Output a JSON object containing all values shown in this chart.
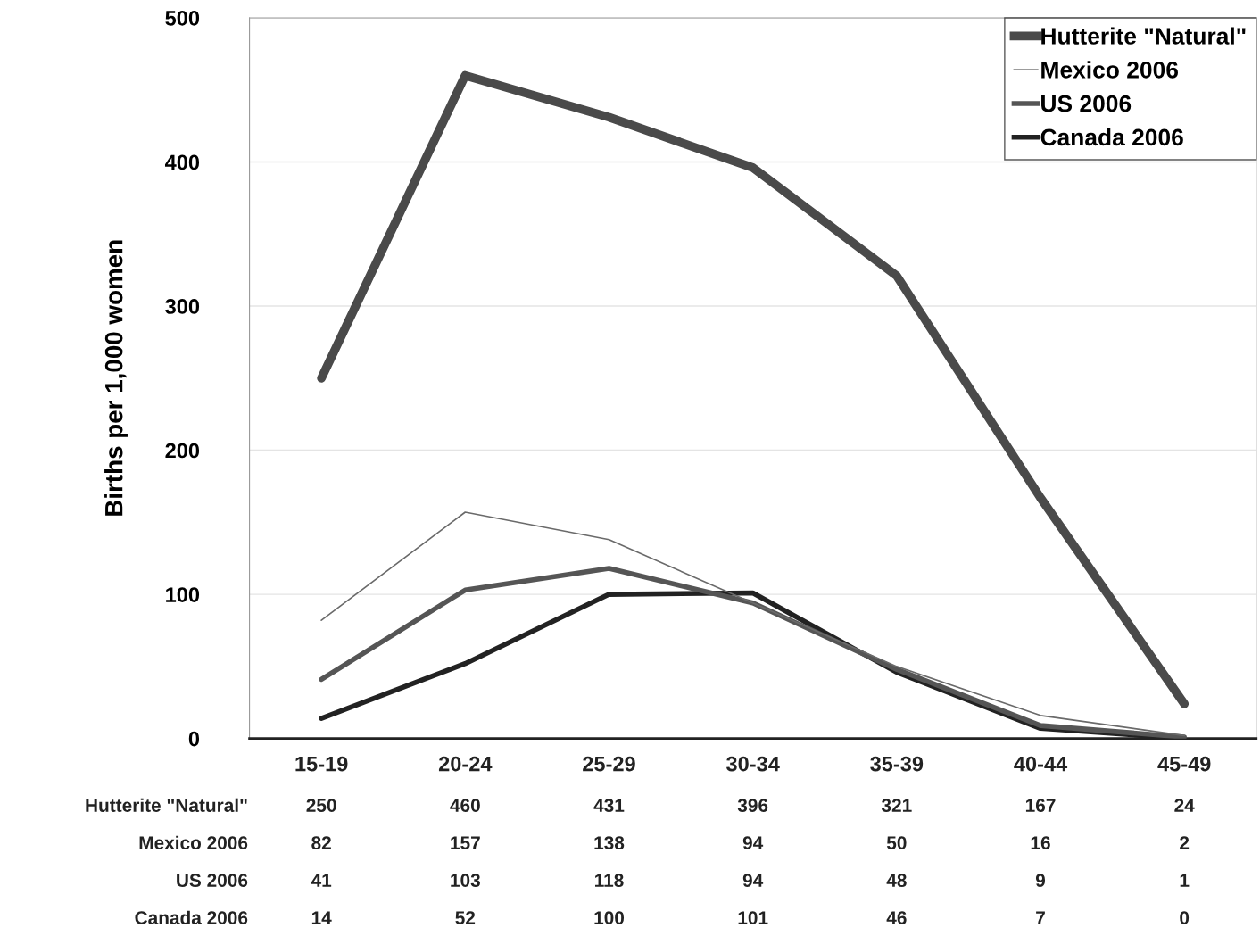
{
  "chart_data": {
    "type": "line",
    "ylabel": "Births per 1,000 women",
    "categories": [
      "15-19",
      "20-24",
      "25-29",
      "30-34",
      "35-39",
      "40-44",
      "45-49"
    ],
    "series": [
      {
        "name": "Hutterite \"Natural\"",
        "color": "#4a4a4a",
        "values": [
          250,
          460,
          431,
          396,
          321,
          167,
          24
        ]
      },
      {
        "name": "Mexico 2006",
        "color": "#6a6a6a",
        "values": [
          82,
          157,
          138,
          94,
          50,
          16,
          2
        ]
      },
      {
        "name": "US 2006",
        "color": "#555555",
        "values": [
          41,
          103,
          118,
          94,
          48,
          9,
          1
        ]
      },
      {
        "name": "Canada 2006",
        "color": "#222222",
        "values": [
          14,
          52,
          100,
          101,
          46,
          7,
          0
        ]
      }
    ],
    "ylim": [
      0,
      500
    ],
    "yticks": [
      0,
      100,
      200,
      300,
      400,
      500
    ],
    "grid": "y",
    "legend": "top right",
    "data_labels": true,
    "marker": "none",
    "line_style": "solid"
  }
}
